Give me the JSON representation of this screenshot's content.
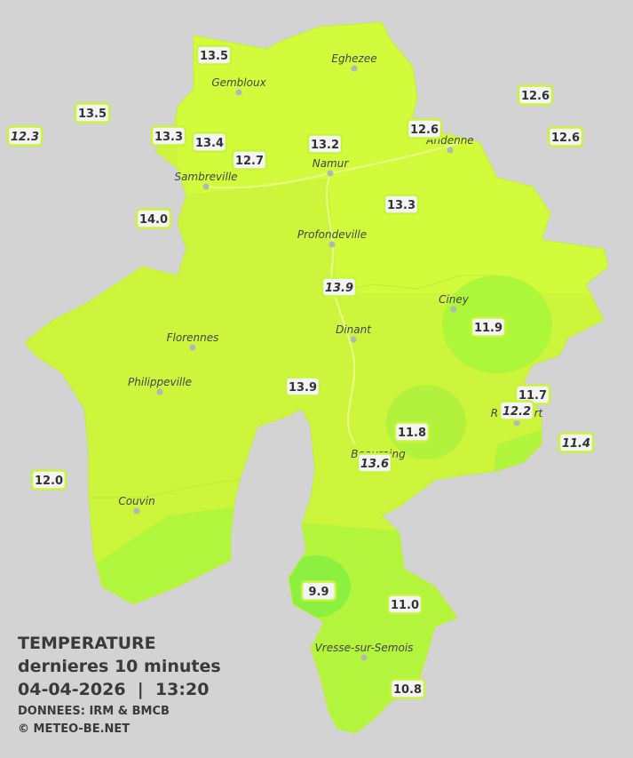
{
  "title": {
    "lines": [
      "TEMPERATURE",
      "dernieres 10 minutes",
      "04-04-2026  |  13:20"
    ]
  },
  "source": "DONNEES: IRM & BMCB",
  "copyright": "© METEO-BE.NET",
  "cities": [
    "Eghezee",
    "Gembloux",
    "Andenne",
    "Namur",
    "Sambreville",
    "Profondeville",
    "Ciney",
    "Dinant",
    "Florennes",
    "Philippeville",
    "Rochefort",
    "Beauraing",
    "Couvin",
    "Vresse-sur-Semois"
  ],
  "stations": [
    {
      "value": "13.5",
      "italic": false
    },
    {
      "value": "13.5",
      "italic": false
    },
    {
      "value": "12.3",
      "italic": true
    },
    {
      "value": "13.3",
      "italic": false
    },
    {
      "value": "13.4",
      "italic": false
    },
    {
      "value": "12.7",
      "italic": false
    },
    {
      "value": "13.2",
      "italic": false
    },
    {
      "value": "12.6",
      "italic": false
    },
    {
      "value": "12.6",
      "italic": false
    },
    {
      "value": "12.6",
      "italic": false
    },
    {
      "value": "14.0",
      "italic": false
    },
    {
      "value": "13.3",
      "italic": false
    },
    {
      "value": "13.9",
      "italic": true
    },
    {
      "value": "11.9",
      "italic": false
    },
    {
      "value": "13.9",
      "italic": false
    },
    {
      "value": "11.7",
      "italic": false
    },
    {
      "value": "12.2",
      "italic": true
    },
    {
      "value": "11.8",
      "italic": false
    },
    {
      "value": "11.4",
      "italic": true
    },
    {
      "value": "13.6",
      "italic": true
    },
    {
      "value": "12.0",
      "italic": false
    },
    {
      "value": "9.9",
      "italic": false
    },
    {
      "value": "11.0",
      "italic": false
    },
    {
      "value": "10.8",
      "italic": false
    }
  ]
}
